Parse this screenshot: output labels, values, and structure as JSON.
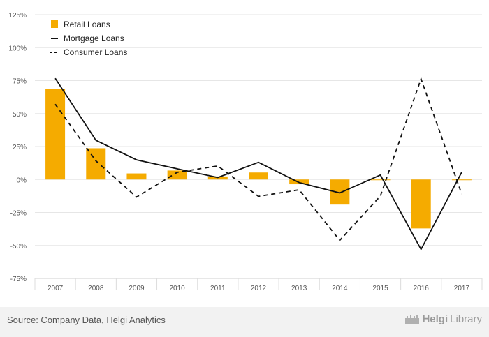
{
  "chart_data": {
    "type": "bar",
    "categories": [
      "2007",
      "2008",
      "2009",
      "2010",
      "2011",
      "2012",
      "2013",
      "2014",
      "2015",
      "2016",
      "2017"
    ],
    "series": [
      {
        "name": "Retail Loans",
        "type": "bar",
        "color": "#f5ab00",
        "values": [
          68.8,
          23.7,
          4.6,
          6.8,
          2.3,
          5.3,
          -3.6,
          -19.0,
          -0.4,
          -37.1,
          -0.3
        ]
      },
      {
        "name": "Mortgage Loans",
        "type": "line",
        "color": "#111111",
        "dash": "solid",
        "values": [
          76.7,
          29.7,
          14.9,
          8.1,
          1.5,
          13.0,
          -2.3,
          -10.2,
          3.4,
          -53.0,
          5.5
        ]
      },
      {
        "name": "Consumer Loans",
        "type": "line",
        "color": "#111111",
        "dash": "dashed",
        "values": [
          57.1,
          14.1,
          -13.3,
          5.4,
          10.3,
          -12.8,
          -7.8,
          -46.1,
          -12.5,
          76.3,
          -10.9
        ]
      }
    ],
    "y_ticks": [
      "125%",
      "100%",
      "75%",
      "50%",
      "25%",
      "0%",
      "-25%",
      "-50%",
      "-75%"
    ],
    "ylim": [
      -75,
      125
    ],
    "grid": true,
    "legend_position": "top-left"
  },
  "footer": {
    "source": "Source: Company Data, Helgi Analytics",
    "logo_prefix": "Helgi",
    "logo_suffix": "Library"
  }
}
